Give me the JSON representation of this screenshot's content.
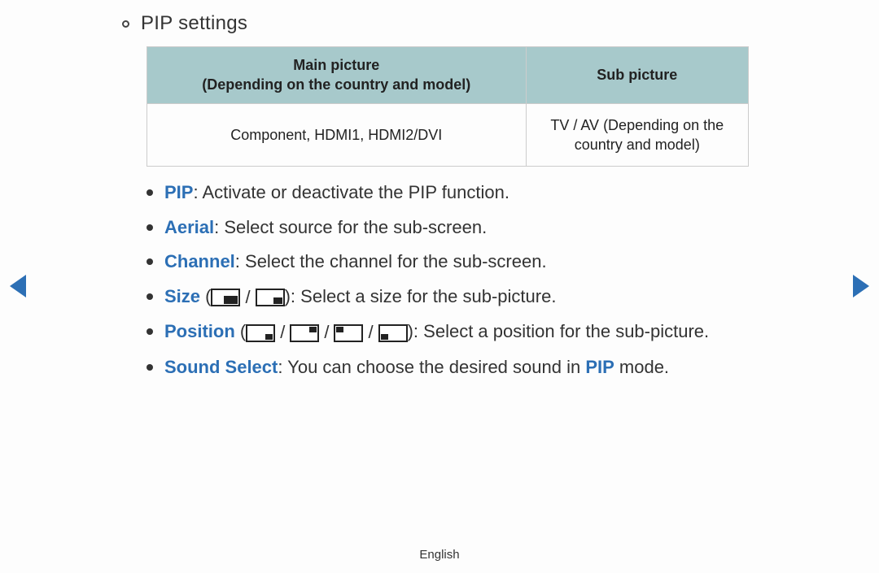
{
  "colors": {
    "text": "#333333",
    "blue": "#2c6fb5",
    "table_header_bg": "#a7c9cb",
    "table_border": "#cccccc",
    "background": "#fdfdfd",
    "nav_arrow": "#2c6fb5",
    "bullet": "#333333"
  },
  "heading": "PIP settings",
  "table": {
    "columns": [
      {
        "key": "main",
        "line1": "Main picture",
        "line2": "(Depending on the country and model)"
      },
      {
        "key": "sub",
        "line1": "Sub picture",
        "line2": ""
      }
    ],
    "rows": [
      {
        "main": "Component, HDMI1, HDMI2/DVI",
        "sub": "TV / AV (Depending on the country and model)"
      }
    ]
  },
  "items": {
    "pip": {
      "term": "PIP",
      "term_color": "blue",
      "desc": ": Activate or deactivate the PIP function."
    },
    "aerial": {
      "term": "Aerial",
      "term_color": "blue",
      "desc": ": Select source for the sub-screen."
    },
    "channel": {
      "term": "Channel",
      "term_color": "blue",
      "desc": ": Select the channel for the sub-screen."
    },
    "size": {
      "term": "Size",
      "term_color": "blue",
      "open": " (",
      "close": "): ",
      "desc": "Select a size for the sub-picture."
    },
    "position": {
      "term": "Position",
      "term_color": "blue",
      "open": " (",
      "close": "): ",
      "desc": "Select a position for the sub-picture."
    },
    "sound": {
      "term": "Sound Select",
      "term_color": "blue",
      "desc_pre": ": You can choose the desired sound in ",
      "inline_term": "PIP",
      "desc_post": " mode."
    }
  },
  "separators": {
    "slash": "/"
  },
  "footer": {
    "language": "English"
  }
}
